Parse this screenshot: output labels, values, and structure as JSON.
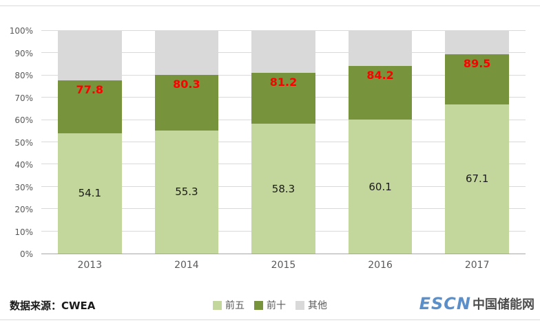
{
  "chart_data": {
    "type": "bar",
    "variant": "stacked-100-percent",
    "title": "",
    "categories": [
      "2013",
      "2014",
      "2015",
      "2016",
      "2017"
    ],
    "series": [
      {
        "name": "前五",
        "values": [
          54.1,
          55.3,
          58.3,
          60.1,
          67.1
        ],
        "color": "#c3d69b",
        "labels": [
          "54.1",
          "55.3",
          "58.3",
          "60.1",
          "67.1"
        ],
        "label_style": "inside-center",
        "label_color": "#1a1a1a"
      },
      {
        "name": "前十",
        "values": [
          23.7,
          25.0,
          22.9,
          24.1,
          22.4
        ],
        "color": "#77933c",
        "labels": [
          "77.8",
          "80.3",
          "81.2",
          "84.2",
          "89.5"
        ],
        "label_style": "inside-top",
        "label_color": "#ff0000"
      },
      {
        "name": "其他",
        "values": [
          22.2,
          19.7,
          18.8,
          15.8,
          10.5
        ],
        "color": "#d9d9d9",
        "labels": [
          "",
          "",
          "",
          "",
          ""
        ],
        "label_style": "none",
        "label_color": ""
      }
    ],
    "ylim": [
      0,
      100
    ],
    "y_tick_step": 10,
    "y_tick_suffix": "%",
    "grid": true,
    "legend_position": "bottom-center"
  },
  "legend": {
    "items": [
      "前五",
      "前十",
      "其他"
    ]
  },
  "footer": {
    "source_label": "数据来源：CWEA",
    "logo_escn": "ESCN",
    "logo_site": "中国储能网"
  },
  "colors": {
    "top5_green": "#c3d69b",
    "top10_green": "#77933c",
    "other_gray": "#d9d9d9",
    "label_red": "#ff0000",
    "axis_text": "#595959",
    "grid_line": "#d9d9d9",
    "logo_blue": "#5b8fc9",
    "logo_dark": "#4d4d4d"
  }
}
